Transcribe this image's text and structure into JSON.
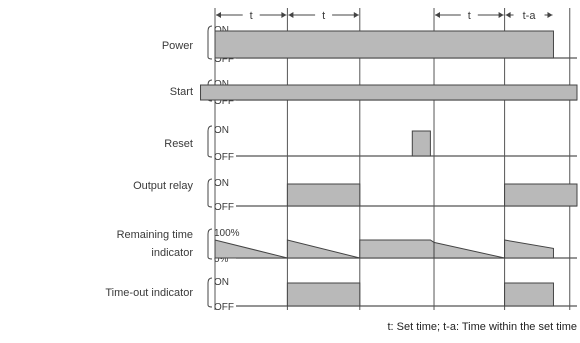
{
  "colors": {
    "fill": "#b9b9b9",
    "line": "#444444",
    "text": "#3a3a3a"
  },
  "timeline": {
    "start": 0,
    "end": 10,
    "markers": [
      0.0,
      2.0,
      4.0,
      6.05,
      8.0,
      9.8
    ]
  },
  "time_labels": [
    {
      "text": "t",
      "from": 0.0,
      "to": 2.0
    },
    {
      "text": "t",
      "from": 2.0,
      "to": 4.0
    },
    {
      "text": "t",
      "from": 6.05,
      "to": 8.0
    },
    {
      "text": "t-a",
      "from": 8.0,
      "to": 9.35
    }
  ],
  "signals": [
    {
      "key": "power",
      "label": [
        "Power"
      ],
      "kind": "digital",
      "levels": [
        "ON",
        "OFF"
      ],
      "segments": [
        [
          0.0,
          9.35
        ]
      ]
    },
    {
      "key": "start",
      "label": [
        "Start"
      ],
      "kind": "digital",
      "levels": [
        "ON",
        "OFF"
      ],
      "segments": [
        [
          -0.4,
          10.0
        ]
      ]
    },
    {
      "key": "reset",
      "label": [
        "Reset"
      ],
      "kind": "digital",
      "levels": [
        "ON",
        "OFF"
      ],
      "segments": [
        [
          5.45,
          5.95
        ]
      ]
    },
    {
      "key": "output-relay",
      "label": [
        "Output relay"
      ],
      "kind": "digital",
      "levels": [
        "ON",
        "OFF"
      ],
      "segments": [
        [
          2.0,
          4.0
        ],
        [
          8.0,
          10.0
        ]
      ]
    },
    {
      "key": "remaining-time",
      "label": [
        "Remaining time",
        "indicator"
      ],
      "kind": "ramp",
      "levels": [
        "100%",
        "0%"
      ],
      "ramps": [
        {
          "from": 0.0,
          "to": 2.0,
          "start": 75,
          "end": 0
        },
        {
          "from": 2.0,
          "to": 4.0,
          "start": 75,
          "end": 0
        },
        {
          "from": 4.0,
          "to": 6.05,
          "start": 75,
          "end": 65,
          "flat_until": 5.95
        },
        {
          "from": 6.05,
          "to": 8.0,
          "start": 65,
          "end": 0
        },
        {
          "from": 8.0,
          "to": 9.35,
          "start": 75,
          "end": 40
        }
      ]
    },
    {
      "key": "time-out",
      "label": [
        "Time-out indicator"
      ],
      "kind": "digital",
      "levels": [
        "ON",
        "OFF"
      ],
      "segments": [
        [
          2.0,
          4.0
        ],
        [
          8.0,
          9.35
        ]
      ]
    }
  ],
  "footnote": "t: Set time; t-a: Time within the set time"
}
